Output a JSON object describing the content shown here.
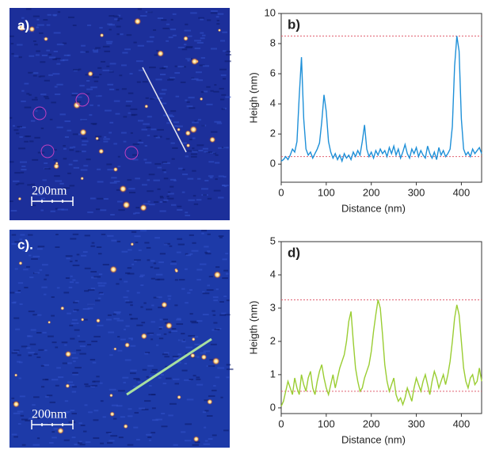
{
  "images": [
    {
      "label": "a)",
      "scale_bar": "200nm"
    },
    {
      "label": "c).",
      "scale_bar": "200nm"
    }
  ],
  "chart_data": [
    {
      "type": "line",
      "panel_label": "b)",
      "x_label": "Distance (nm)",
      "y_label": "Heigh (nm)",
      "xlim": [
        0,
        445
      ],
      "xticks": [
        0,
        100,
        200,
        300,
        400
      ],
      "ylim": [
        -1.2,
        10
      ],
      "yticks": [
        0,
        2,
        4,
        6,
        8,
        10
      ],
      "reference_lines": [
        8.5,
        0.5
      ],
      "reference_color": "#e06070",
      "x": [
        0,
        5,
        10,
        15,
        20,
        25,
        30,
        35,
        40,
        45,
        50,
        55,
        60,
        65,
        70,
        75,
        80,
        85,
        90,
        95,
        100,
        105,
        110,
        115,
        120,
        125,
        130,
        135,
        140,
        145,
        150,
        155,
        160,
        165,
        170,
        175,
        180,
        185,
        190,
        195,
        200,
        205,
        210,
        215,
        220,
        225,
        230,
        235,
        240,
        245,
        250,
        255,
        260,
        265,
        270,
        275,
        280,
        285,
        290,
        295,
        300,
        305,
        310,
        315,
        320,
        325,
        330,
        335,
        340,
        345,
        350,
        355,
        360,
        365,
        370,
        375,
        380,
        385,
        390,
        395,
        400,
        405,
        410,
        415,
        420,
        425,
        430,
        435,
        440,
        445
      ],
      "series": [
        {
          "color": "#1e90d8",
          "values": [
            0.2,
            0.3,
            0.5,
            0.3,
            0.6,
            1.0,
            0.8,
            1.5,
            4.5,
            7.1,
            3.0,
            1.0,
            0.6,
            0.8,
            0.4,
            0.7,
            1.0,
            1.4,
            2.8,
            4.6,
            3.5,
            1.5,
            0.8,
            0.4,
            0.7,
            0.3,
            0.6,
            0.2,
            0.7,
            0.4,
            0.6,
            0.3,
            0.8,
            0.5,
            0.9,
            0.6,
            1.5,
            2.6,
            1.0,
            0.5,
            0.8,
            0.4,
            0.9,
            0.6,
            1.0,
            0.7,
            0.9,
            0.5,
            1.1,
            0.7,
            1.2,
            0.6,
            1.0,
            0.4,
            0.8,
            1.3,
            0.7,
            0.4,
            1.0,
            0.7,
            1.1,
            0.5,
            0.9,
            0.6,
            0.4,
            1.2,
            0.7,
            0.4,
            0.8,
            0.3,
            1.1,
            0.6,
            0.9,
            0.5,
            0.7,
            1.0,
            2.5,
            6.5,
            8.5,
            7.5,
            3.0,
            1.0,
            0.6,
            0.8,
            0.5,
            1.0,
            0.7,
            0.9,
            1.1,
            0.7
          ]
        }
      ]
    },
    {
      "type": "line",
      "panel_label": "d)",
      "x_label": "Distance (nm)",
      "y_label": "Heigth (nm)",
      "xlim": [
        0,
        445
      ],
      "xticks": [
        0,
        100,
        200,
        300,
        400
      ],
      "ylim": [
        -0.17,
        5
      ],
      "yticks": [
        0,
        1,
        2,
        3,
        4,
        5
      ],
      "reference_lines": [
        3.25,
        0.5
      ],
      "reference_color": "#e06070",
      "x": [
        0,
        5,
        10,
        15,
        20,
        25,
        30,
        35,
        40,
        45,
        50,
        55,
        60,
        65,
        70,
        75,
        80,
        85,
        90,
        95,
        100,
        105,
        110,
        115,
        120,
        125,
        130,
        135,
        140,
        145,
        150,
        155,
        160,
        165,
        170,
        175,
        180,
        185,
        190,
        195,
        200,
        205,
        210,
        215,
        220,
        225,
        230,
        235,
        240,
        245,
        250,
        255,
        260,
        265,
        270,
        275,
        280,
        285,
        290,
        295,
        300,
        305,
        310,
        315,
        320,
        325,
        330,
        335,
        340,
        345,
        350,
        355,
        360,
        365,
        370,
        375,
        380,
        385,
        390,
        395,
        400,
        405,
        410,
        415,
        420,
        425,
        430,
        435,
        440,
        445
      ],
      "series": [
        {
          "color": "#9acd32",
          "values": [
            0.05,
            0.2,
            0.5,
            0.8,
            0.6,
            0.4,
            0.9,
            0.6,
            0.4,
            1.0,
            0.7,
            0.5,
            0.9,
            1.1,
            0.6,
            0.4,
            0.8,
            1.1,
            1.3,
            0.9,
            0.6,
            0.4,
            0.7,
            1.0,
            0.6,
            0.9,
            1.2,
            1.4,
            1.6,
            2.0,
            2.6,
            2.9,
            2.0,
            1.2,
            0.8,
            0.5,
            0.6,
            0.9,
            1.1,
            1.3,
            1.7,
            2.3,
            2.8,
            3.25,
            3.0,
            2.2,
            1.3,
            0.8,
            0.5,
            0.7,
            0.9,
            0.4,
            0.2,
            0.3,
            0.1,
            0.3,
            0.6,
            0.4,
            0.2,
            0.6,
            0.9,
            0.7,
            0.5,
            0.8,
            1.0,
            0.7,
            0.4,
            0.8,
            1.1,
            0.9,
            0.6,
            0.8,
            1.0,
            0.7,
            1.0,
            1.4,
            2.0,
            2.7,
            3.1,
            2.8,
            2.0,
            1.2,
            0.8,
            0.6,
            0.9,
            1.0,
            0.7,
            0.8,
            1.2,
            0.8
          ]
        }
      ]
    }
  ]
}
